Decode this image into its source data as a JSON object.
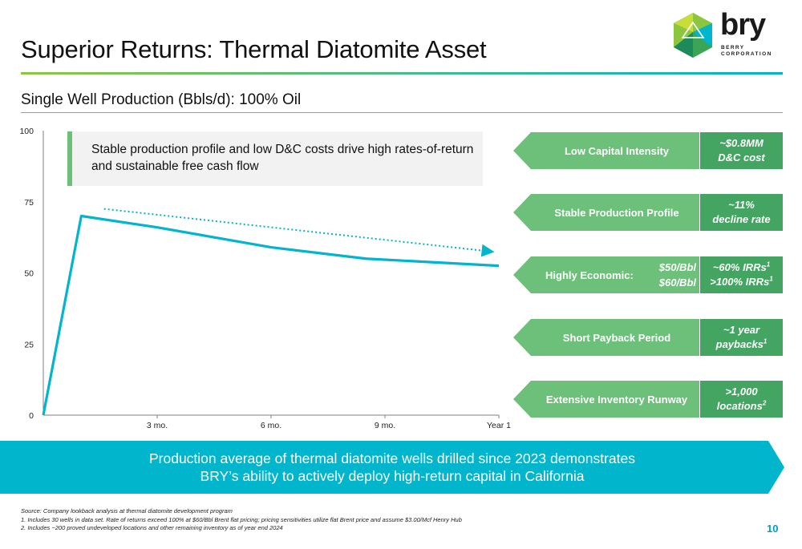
{
  "slide": {
    "title": "Superior Returns: Thermal Diatomite Asset",
    "subtitle": "Single Well Production (Bbls/d): 100% Oil",
    "page_number": "10"
  },
  "logo": {
    "word": "bry",
    "company_line1": "BERRY",
    "company_line2": "CORPORATION",
    "hex_colors": [
      "#8cc63f",
      "#3aa655",
      "#00b5cc",
      "#1d8a5a",
      "#c8dc3a"
    ]
  },
  "callout": {
    "text": "Stable production profile and low D&C costs drive high rates-of-return and sustainable free cash flow"
  },
  "metrics": [
    {
      "label": "Low Capital Intensity",
      "value_line1": "~$0.8MM",
      "value_line2": "D&C cost"
    },
    {
      "label": "Stable Production Profile",
      "value_line1": "~11%",
      "value_line2": "decline rate"
    },
    {
      "label": "Highly Economic:",
      "price1": "$50/Bbl",
      "price2": "$60/Bbl",
      "value_line1": "~60% IRRs",
      "value_line1_sup": "1",
      "value_line2": ">100% IRRs",
      "value_line2_sup": "1"
    },
    {
      "label": "Short Payback Period",
      "value_line1": "~1 year",
      "value_line2": "paybacks",
      "value_line2_sup": "1"
    },
    {
      "label": "Extensive Inventory Runway",
      "value_line1": ">1,000",
      "value_line2": "locations",
      "value_line2_sup": "2"
    }
  ],
  "banner": {
    "line1": "Production average of thermal diatomite wells drilled since 2023 demonstrates",
    "line2": "BRY’s ability to actively deploy high-return capital in California"
  },
  "footnotes": {
    "source": "Source: Company lookback analysis at thermal diatomite development program",
    "note1": "1.  Includes 30 wells in data set. Rate of returns exceed 100% at $60/Bbl Brent flat pricing; pricing sensitivities utilize flat Brent price and assume $3.00/Mcf Henry Hub",
    "note2": "2.  Includes ~200 proved undeveloped locations and other remaining inventory as of year end 2024"
  },
  "colors": {
    "accent_green": "#6cc07a",
    "dark_green": "#43a561",
    "teal": "#00b5cc",
    "page_number": "#00a0c0"
  },
  "chart_data": {
    "type": "line",
    "title": "",
    "xlabel": "",
    "ylabel": "",
    "ylim": [
      0,
      100
    ],
    "xlim": [
      0,
      12
    ],
    "yticks": [
      0,
      25,
      50,
      75,
      100
    ],
    "xticks": [
      {
        "value": 3,
        "label": "3 mo."
      },
      {
        "value": 6,
        "label": "6 mo."
      },
      {
        "value": 9,
        "label": "9 mo."
      },
      {
        "value": 12,
        "label": "Year 1"
      }
    ],
    "grid": false,
    "series": [
      {
        "color": "#00b5cc",
        "x": [
          0,
          1,
          3,
          6,
          8.5,
          12
        ],
        "y": [
          0,
          70,
          66,
          59,
          55,
          52.5
        ]
      }
    ],
    "trend_arrow": {
      "color": "#00b5cc",
      "x": [
        1.6,
        11.8
      ],
      "y": [
        72.5,
        57.5
      ],
      "style": "dotted"
    }
  }
}
